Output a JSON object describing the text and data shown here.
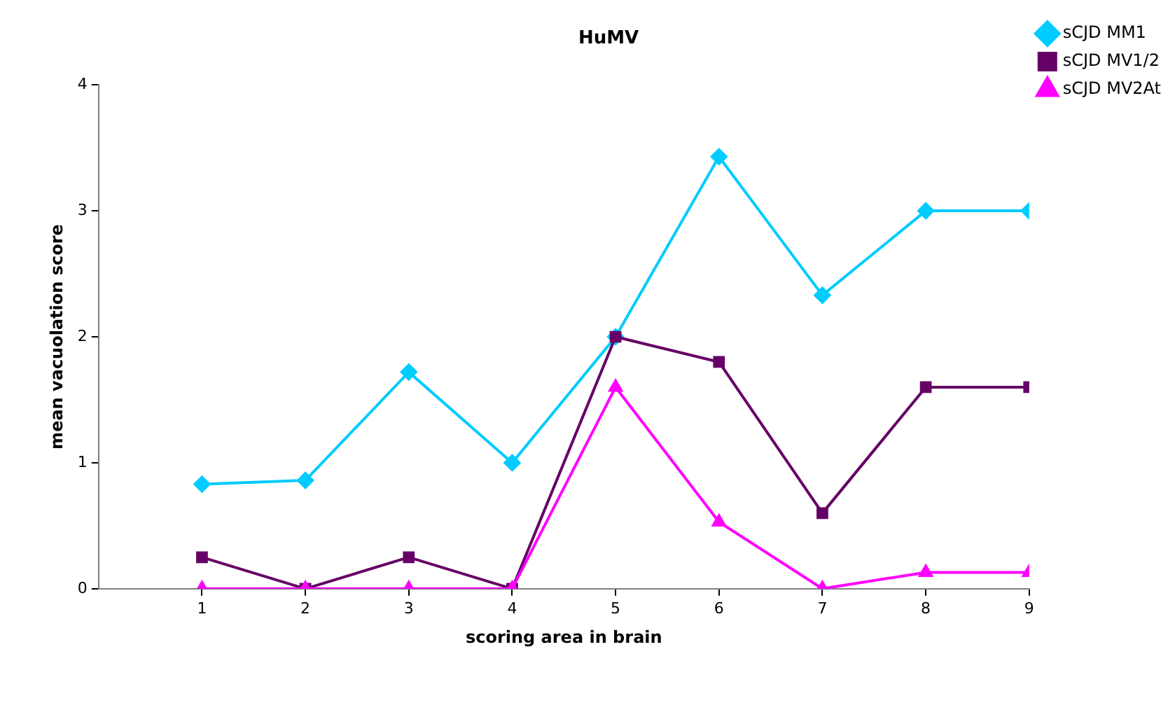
{
  "chart_data": {
    "type": "line",
    "title": "HuMV",
    "xlabel": "scoring area in brain",
    "ylabel": "mean vacuolation score",
    "x": [
      1,
      2,
      3,
      4,
      5,
      6,
      7,
      8,
      9
    ],
    "xlim": [
      0,
      9
    ],
    "xticks": [
      1,
      2,
      3,
      4,
      5,
      6,
      7,
      8,
      9
    ],
    "ylim": [
      0,
      4
    ],
    "yticks": [
      0,
      1,
      2,
      3,
      4
    ],
    "grid": false,
    "legend": "top right",
    "line_style": "solid",
    "series": [
      {
        "name": "sCJD MM1",
        "color": "#00ccff",
        "marker": "diamond",
        "values": [
          0.83,
          0.86,
          1.72,
          1.0,
          2.0,
          3.43,
          2.33,
          3.0,
          3.0
        ]
      },
      {
        "name": "sCJD MV1/2",
        "color": "#660066",
        "marker": "square",
        "values": [
          0.25,
          0.0,
          0.25,
          0.0,
          2.0,
          1.8,
          0.6,
          1.6,
          1.6
        ]
      },
      {
        "name": "sCJD MV2At",
        "color": "#ff00ff",
        "marker": "triangle",
        "values": [
          0.0,
          0.0,
          0.0,
          0.0,
          1.6,
          0.53,
          0.0,
          0.13,
          0.13
        ]
      }
    ]
  }
}
